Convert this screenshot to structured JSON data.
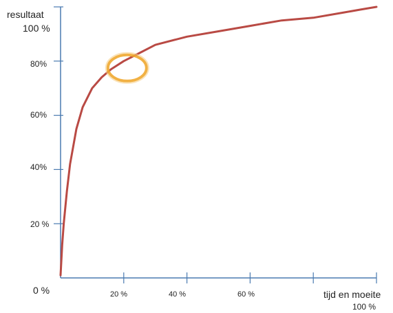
{
  "chart_data": {
    "type": "line",
    "ylabel": "resultaat",
    "xlabel": "tijd en moeite",
    "y_top_label": "100 %",
    "x_end_label": "100 %",
    "origin_label": "0 %",
    "y_tick_labels": [
      "20 %",
      "40%",
      "60%",
      "80%"
    ],
    "x_tick_labels": [
      "20 %",
      "40 %",
      "60 %"
    ],
    "xlim": [
      0,
      100
    ],
    "ylim": [
      0,
      100
    ],
    "grid": false,
    "series": [
      {
        "color": "#b94a44",
        "x": [
          0,
          0.5,
          1,
          2,
          3,
          5,
          7,
          10,
          13,
          16,
          20,
          25,
          30,
          40,
          50,
          60,
          70,
          80,
          90,
          95,
          100
        ],
        "y": [
          1,
          12,
          20,
          32,
          42,
          55,
          63,
          70,
          74,
          77,
          80,
          83,
          86,
          89,
          91,
          93,
          95,
          96,
          98,
          99,
          100
        ]
      }
    ],
    "highlight": {
      "x": 20,
      "y": 80,
      "color": "#f0a830"
    }
  }
}
